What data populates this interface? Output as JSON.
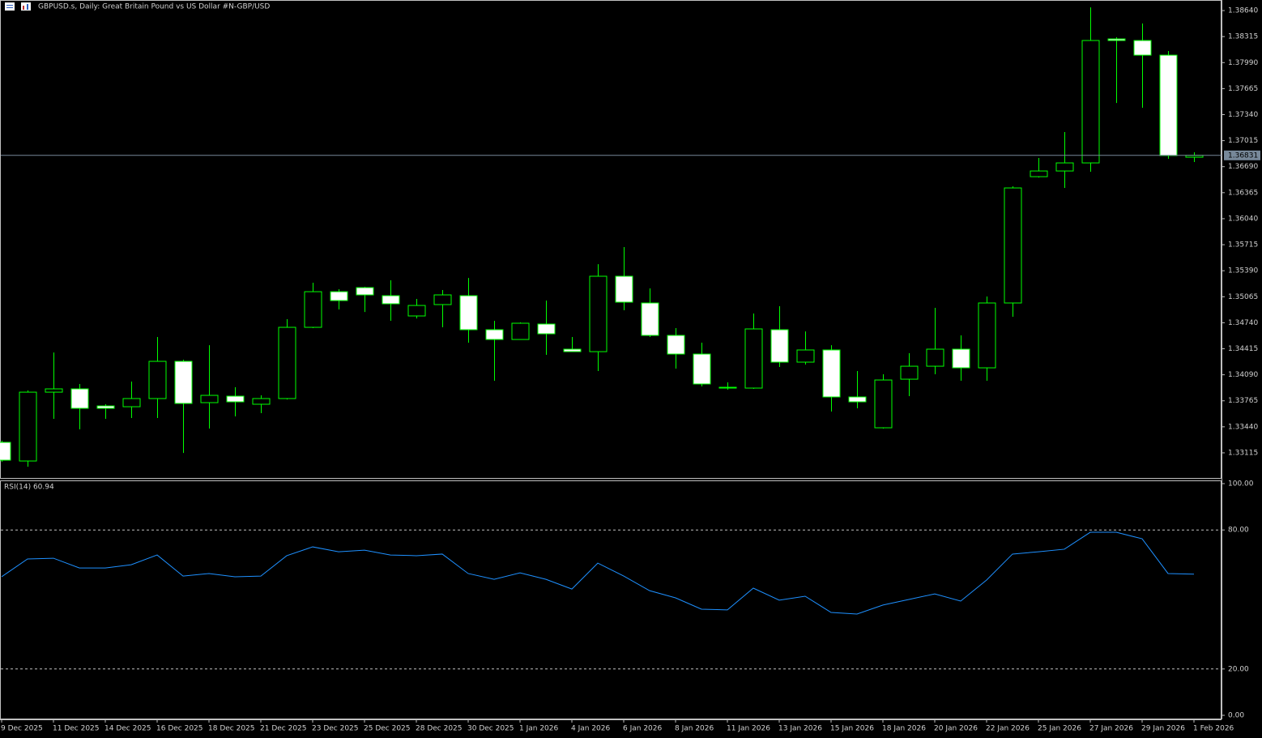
{
  "chart_data": [
    {
      "type": "candlestick",
      "title": "GBPUSD.s, Daily:  Great Britain Pound vs US Dollar #N-GBP/USD",
      "categories": [
        "9 Dec 2025",
        null,
        "11 Dec 2025",
        null,
        "14 Dec 2025",
        null,
        "16 Dec 2025",
        null,
        "18 Dec 2025",
        null,
        "21 Dec 2025",
        null,
        "23 Dec 2025",
        null,
        "25 Dec 2025",
        null,
        "28 Dec 2025",
        null,
        "30 Dec 2025",
        null,
        "1 Jan 2026",
        null,
        "4 Jan 2026",
        null,
        "6 Jan 2026",
        null,
        "8 Jan 2026",
        null,
        "11 Jan 2026",
        null,
        "13 Jan 2026",
        null,
        "15 Jan 2026",
        null,
        "18 Jan 2026",
        null,
        "20 Jan 2026",
        null,
        "22 Jan 2026",
        null,
        "25 Jan 2026",
        null,
        "27 Jan 2026",
        null,
        "29 Jan 2026",
        null,
        "1 Feb 2026"
      ],
      "open": [
        1.33246,
        1.33013,
        1.33873,
        1.33914,
        1.33701,
        1.33691,
        1.33793,
        1.34258,
        1.33742,
        1.33823,
        1.33722,
        1.33793,
        1.34683,
        1.35128,
        1.35179,
        1.35078,
        1.34825,
        1.34967,
        1.35078,
        1.34653,
        1.34531,
        1.34724,
        1.3441,
        1.34379,
        1.35321,
        1.34987,
        1.34582,
        1.34349,
        1.33934,
        1.33924,
        1.34653,
        1.34248,
        1.344,
        1.33813,
        1.33428,
        1.34035,
        1.34197,
        1.3441,
        1.34177,
        1.34987,
        1.36565,
        1.36636,
        1.36737,
        1.38286,
        1.38266,
        1.38083,
        1.36808
      ],
      "high": [
        1.33266,
        1.33894,
        1.34369,
        1.33975,
        1.33722,
        1.34005,
        1.34562,
        1.34278,
        1.3446,
        1.33934,
        1.33833,
        1.34784,
        1.3524,
        1.35159,
        1.35189,
        1.3527,
        1.35037,
        1.35149,
        1.353,
        1.34764,
        1.34744,
        1.35017,
        1.34562,
        1.35472,
        1.35685,
        1.35169,
        1.34673,
        1.34491,
        1.33995,
        1.34855,
        1.34946,
        1.34632,
        1.3446,
        1.34137,
        1.34096,
        1.34359,
        1.34926,
        1.34582,
        1.35068,
        1.36444,
        1.36798,
        1.37122,
        1.3868,
        1.38306,
        1.38478,
        1.38134,
        1.36869
      ],
      "low": [
        1.33003,
        1.32942,
        1.3354,
        1.33408,
        1.3354,
        1.3355,
        1.3355,
        1.33114,
        1.33418,
        1.3357,
        1.3361,
        1.33782,
        1.34673,
        1.34906,
        1.34875,
        1.34764,
        1.34794,
        1.34683,
        1.34491,
        1.34015,
        1.34531,
        1.34339,
        1.34379,
        1.34137,
        1.34896,
        1.34562,
        1.34167,
        1.33944,
        1.33904,
        1.33914,
        1.34187,
        1.34218,
        1.33631,
        1.33671,
        1.33418,
        1.33823,
        1.34096,
        1.34015,
        1.34015,
        1.34815,
        1.36555,
        1.36424,
        1.36626,
        1.37486,
        1.37426,
        1.36788,
        1.36748
      ],
      "close": [
        1.33023,
        1.33873,
        1.33914,
        1.33671,
        1.33671,
        1.33793,
        1.34258,
        1.33732,
        1.33833,
        1.33752,
        1.33793,
        1.34683,
        1.35128,
        1.35017,
        1.35088,
        1.34977,
        1.34956,
        1.35088,
        1.34653,
        1.34531,
        1.34734,
        1.34602,
        1.34379,
        1.35321,
        1.34997,
        1.34582,
        1.34349,
        1.33975,
        1.33924,
        1.34663,
        1.34248,
        1.344,
        1.33813,
        1.33752,
        1.34025,
        1.34197,
        1.3441,
        1.34177,
        1.34987,
        1.36424,
        1.36636,
        1.36737,
        1.38266,
        1.38266,
        1.38083,
        1.36828,
        1.36831
      ],
      "current_price": 1.36831,
      "ylim": [
        1.32801,
        1.38772
      ],
      "yticks": [
        {
          "value": 1.3864,
          "label": "1.38640"
        },
        1.38315,
        {
          "value": 1.3799,
          "label": "1.37990"
        },
        1.37665,
        {
          "value": 1.3734,
          "label": "1.37340"
        },
        1.37015,
        {
          "value": 1.3669,
          "label": "1.36690"
        },
        1.36365,
        {
          "value": 1.3604,
          "label": "1.36040"
        },
        1.35715,
        {
          "value": 1.3539,
          "label": "1.35390"
        },
        1.35065,
        {
          "value": 1.3474,
          "label": "1.34740"
        },
        1.34415,
        {
          "value": 1.3409,
          "label": "1.34090"
        },
        1.33765,
        {
          "value": 1.3344,
          "label": "1.33440"
        },
        1.33115
      ],
      "up_color": "#00ff00",
      "up_fill": "#000000",
      "down_fill": "#ffffff",
      "price_line_color": "#778899"
    },
    {
      "type": "line",
      "title": "RSI(14) 60.94",
      "values": [
        59.8,
        67.5,
        67.8,
        63.6,
        63.6,
        65.0,
        69.2,
        60.1,
        61.2,
        59.8,
        60.1,
        68.9,
        72.7,
        70.6,
        71.3,
        69.2,
        68.9,
        69.6,
        61.2,
        58.7,
        61.5,
        58.7,
        54.5,
        65.7,
        60.1,
        53.8,
        50.7,
        45.8,
        45.5,
        54.9,
        49.7,
        51.4,
        44.4,
        43.7,
        47.6,
        50.0,
        52.4,
        49.3,
        58.4,
        69.6,
        70.6,
        71.7,
        79.0,
        79.0,
        76.2,
        61.2,
        60.94
      ],
      "color": "#1e90ff",
      "ylim": [
        0,
        100
      ],
      "yticks": [
        {
          "value": 100,
          "label": "100.00"
        },
        {
          "value": 80,
          "label": "80.00"
        },
        {
          "value": 20,
          "label": "20.00"
        },
        {
          "value": 0,
          "label": "0.00"
        }
      ],
      "levels": [
        80,
        20
      ]
    }
  ]
}
